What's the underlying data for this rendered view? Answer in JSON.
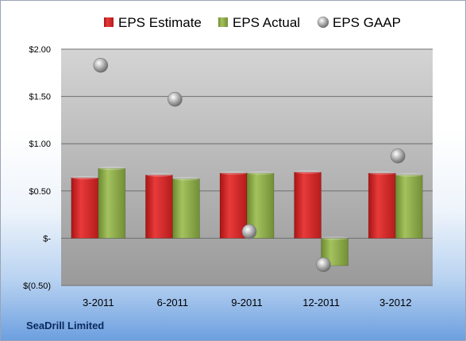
{
  "footer": {
    "company": "SeaDrill Limited"
  },
  "chart_data": {
    "type": "bar",
    "categories": [
      "3-2011",
      "6-2011",
      "9-2011",
      "12-2011",
      "3-2012"
    ],
    "series": [
      {
        "name": "EPS Estimate",
        "type": "bar",
        "color": "#d42a2a",
        "values": [
          0.64,
          0.67,
          0.69,
          0.7,
          0.69
        ]
      },
      {
        "name": "EPS Actual",
        "type": "bar",
        "color": "#8aa84a",
        "values": [
          0.74,
          0.63,
          0.69,
          -0.29,
          0.67
        ]
      },
      {
        "name": "EPS GAAP",
        "type": "scatter",
        "color": "#a9a9a9",
        "values": [
          1.83,
          1.47,
          0.07,
          -0.28,
          0.87
        ]
      }
    ],
    "y_ticks": [
      {
        "value": 2.0,
        "label": "$2.00"
      },
      {
        "value": 1.5,
        "label": "$1.50"
      },
      {
        "value": 1.0,
        "label": "$1.00"
      },
      {
        "value": 0.5,
        "label": "$0.50"
      },
      {
        "value": 0.0,
        "label": "$-"
      },
      {
        "value": -0.5,
        "label": "$(0.50)"
      }
    ],
    "ylim": [
      -0.5,
      2.0
    ],
    "grid": true,
    "legend_position": "top"
  }
}
